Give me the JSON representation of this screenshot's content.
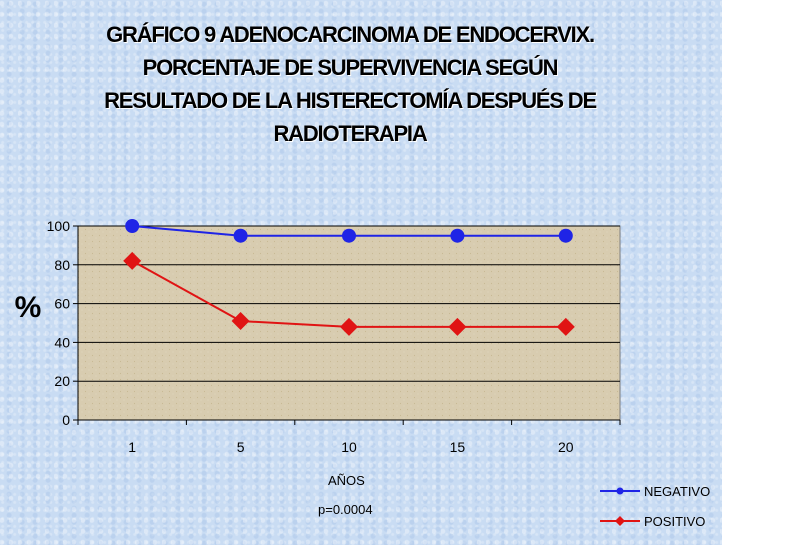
{
  "title_lines": [
    "GRÁFICO 9    ADENOCARCINOMA DE ENDOCERVIX.",
    "PORCENTAJE DE SUPERVIVENCIA SEGÚN",
    "RESULTADO DE LA HISTERECTOMÍA DESPUÉS DE",
    "RADIOTERAPIA"
  ],
  "note": "p=0.0004",
  "colors": {
    "background": "#c9dcf3",
    "plot_area": "#d8ccb0",
    "negativo": "#1f24e6",
    "positivo": "#e01414"
  },
  "chart_data": {
    "type": "line",
    "categories": [
      "1",
      "5",
      "10",
      "15",
      "20"
    ],
    "series": [
      {
        "name": "NEGATIVO",
        "values": [
          100,
          95,
          95,
          95,
          95
        ],
        "color": "#1f24e6",
        "marker": "circle"
      },
      {
        "name": "POSITIVO",
        "values": [
          82,
          51,
          48,
          48,
          48
        ],
        "color": "#e01414",
        "marker": "diamond"
      }
    ],
    "title": "GRÁFICO 9 ADENOCARCINOMA DE ENDOCERVIX. PORCENTAJE DE SUPERVIVENCIA SEGÚN RESULTADO DE LA HISTERECTOMÍA DESPUÉS DE RADIOTERAPIA",
    "xlabel": "AÑOS",
    "ylabel": "%",
    "ylim": [
      0,
      100
    ],
    "yticks": [
      0,
      20,
      40,
      60,
      80,
      100
    ],
    "grid": true,
    "legend_position": "bottom-right"
  }
}
